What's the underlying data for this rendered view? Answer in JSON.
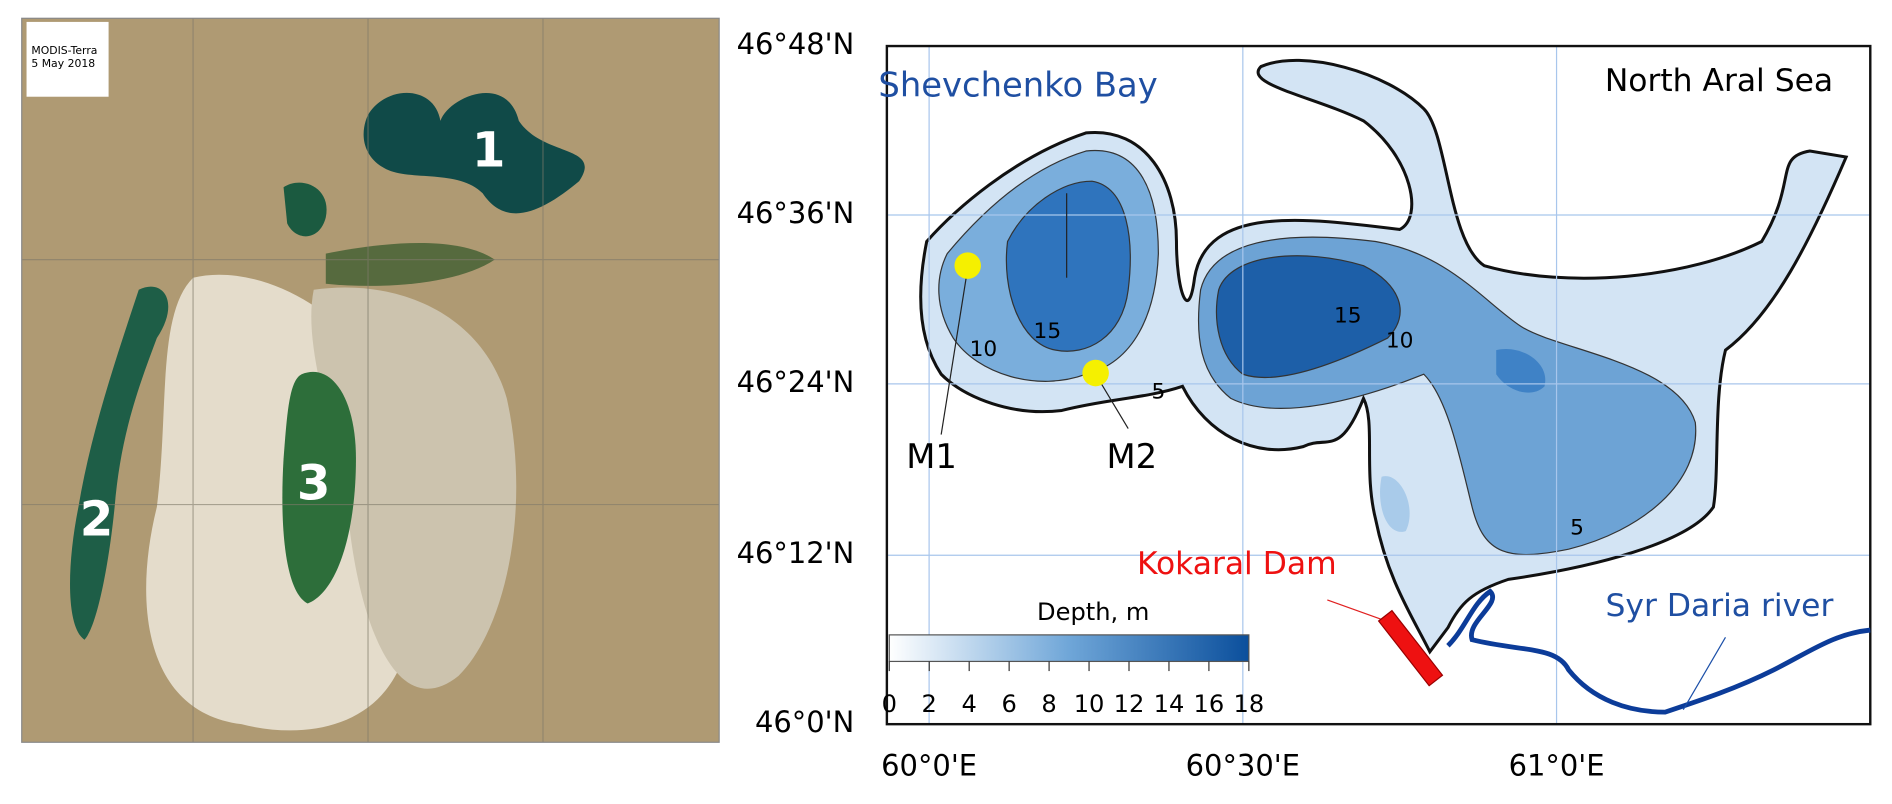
{
  "left_panel": {
    "caption": [
      "MODIS-Terra",
      "5 May 2018"
    ],
    "labels": [
      "1",
      "2",
      "3"
    ]
  },
  "right_panel": {
    "title": "North Aral Sea",
    "lat_labels": [
      "46°48'N",
      "46°36'N",
      "46°24'N",
      "46°12'N",
      "46°0'N"
    ],
    "lon_labels": [
      "60°0'E",
      "60°30'E",
      "61°0'E"
    ],
    "places": {
      "bay": "Shevchenko Bay",
      "m1": "M1",
      "m2": "M2",
      "dam": "Kokaral Dam",
      "river": "Syr Daria river"
    },
    "contour_labels": [
      "10",
      "15",
      "5",
      "15",
      "10",
      "5"
    ],
    "colorbar": {
      "title": "Depth, m",
      "lim": [
        0,
        18
      ],
      "ticks": [
        0,
        2,
        4,
        6,
        8,
        10,
        12,
        14,
        16,
        18
      ]
    }
  }
}
